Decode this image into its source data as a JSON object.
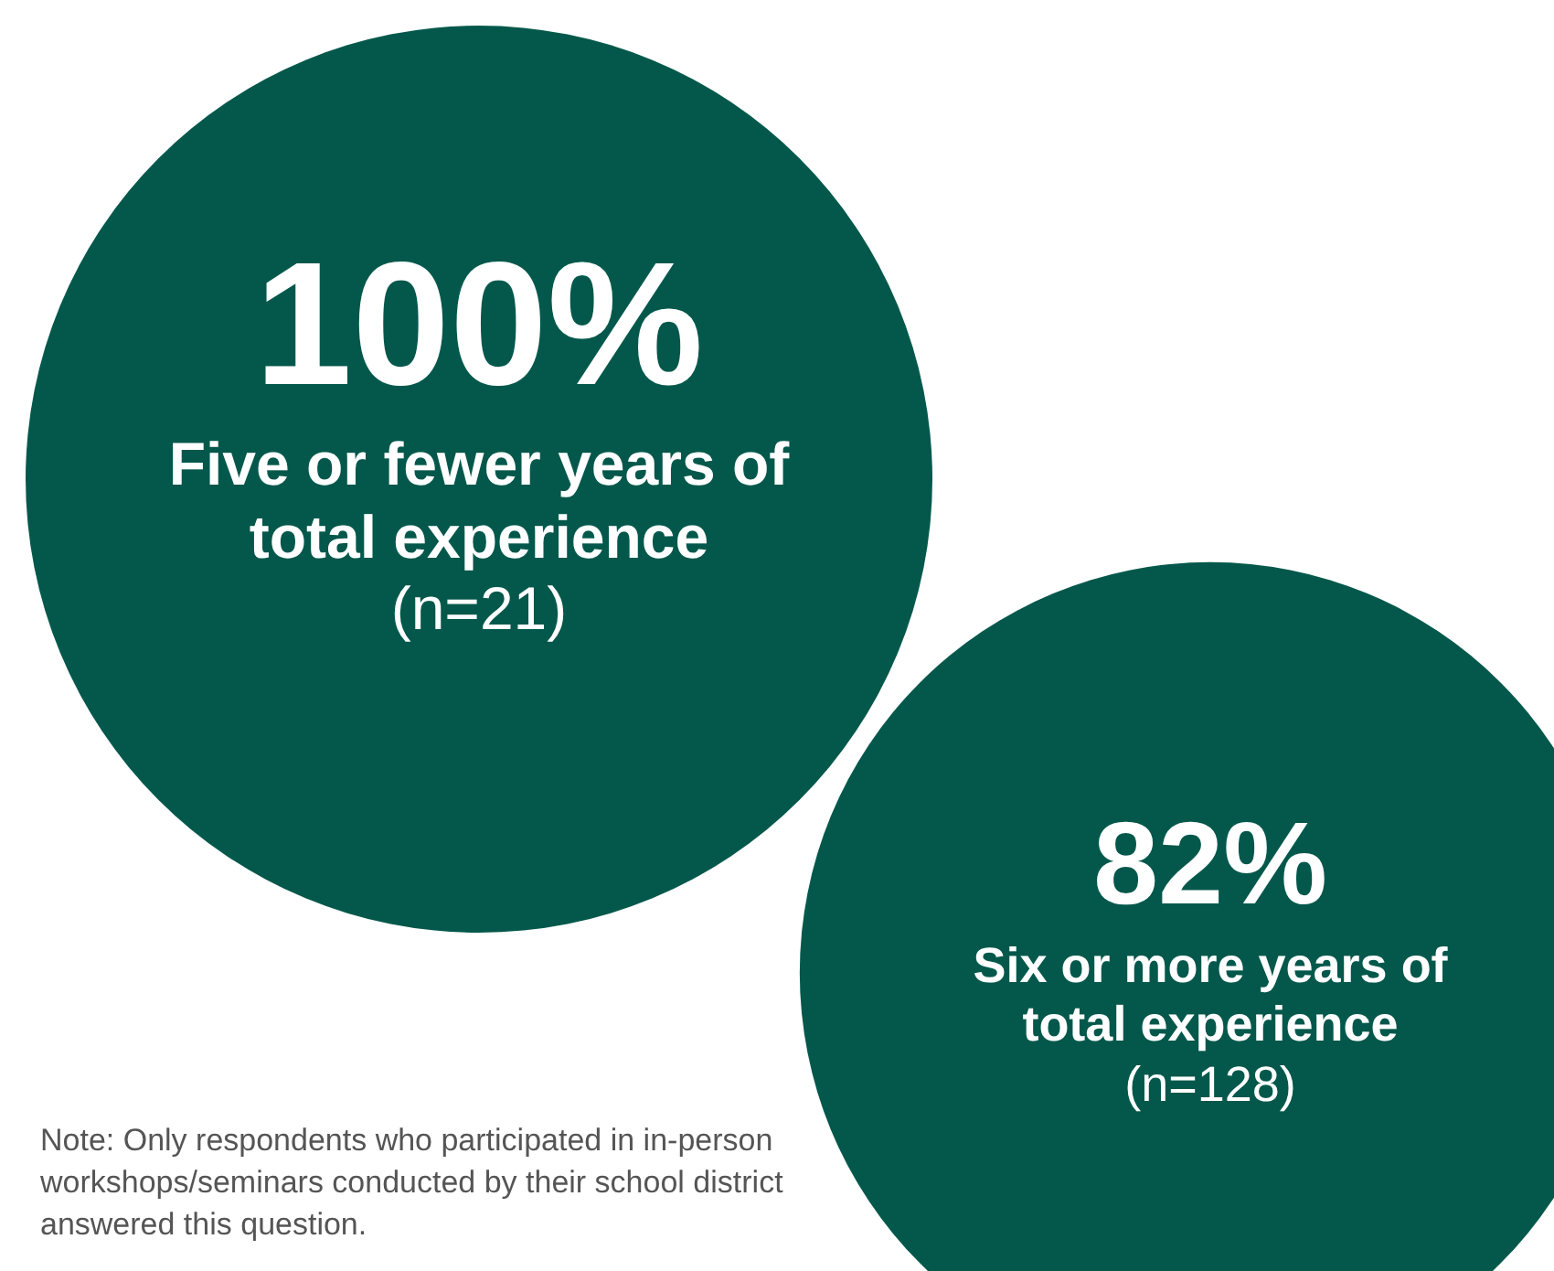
{
  "chart_data": {
    "type": "other",
    "categories": [
      "Five or fewer years of total experience",
      "Six or more years of total experience"
    ],
    "values": [
      100,
      82
    ],
    "value_labels": [
      "100%",
      "82%"
    ],
    "colors": [
      "#03584b",
      "#03584b"
    ],
    "annotations": [
      {
        "text": "(n=21)",
        "x": "Five or fewer years of total experience"
      },
      {
        "text": "(n=128)",
        "x": "Six or more years of total experience"
      },
      "Note: Only respondents who participated in in-person workshops/seminars conducted by their school district answered this question."
    ]
  }
}
